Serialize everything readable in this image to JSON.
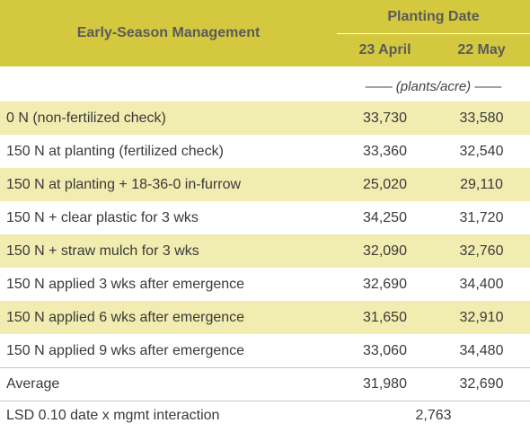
{
  "header": {
    "management_label": "Early-Season Management",
    "planting_date_label": "Planting Date",
    "date_1": "23 April",
    "date_2": "22 May"
  },
  "units": "—— (plants/acre) ——",
  "rows": [
    {
      "label": "0 N (non-fertilized check)",
      "a": "33,730",
      "b": "33,580"
    },
    {
      "label": "150 N at planting (fertilized check)",
      "a": "33,360",
      "b": "32,540"
    },
    {
      "label": "150 N at planting + 18-36-0 in-furrow",
      "a": "25,020",
      "b": "29,110"
    },
    {
      "label": "150 N + clear plastic for 3 wks",
      "a": "34,250",
      "b": "31,720"
    },
    {
      "label": "150 N + straw mulch for 3 wks",
      "a": "32,090",
      "b": "32,760"
    },
    {
      "label": "150 N applied 3 wks after emergence",
      "a": "32,690",
      "b": "34,400"
    },
    {
      "label": "150 N applied 6 wks after emergence",
      "a": "31,650",
      "b": "32,910"
    },
    {
      "label": "150 N applied 9 wks after emergence",
      "a": "33,060",
      "b": "34,480"
    }
  ],
  "average": {
    "label": "Average",
    "a": "31,980",
    "b": "32,690"
  },
  "lsd": {
    "label": "LSD 0.10 date x mgmt interaction",
    "value": "2,763"
  },
  "colors": {
    "header_bg": "#d4c93e",
    "shade_bg": "#f1ecb0"
  }
}
